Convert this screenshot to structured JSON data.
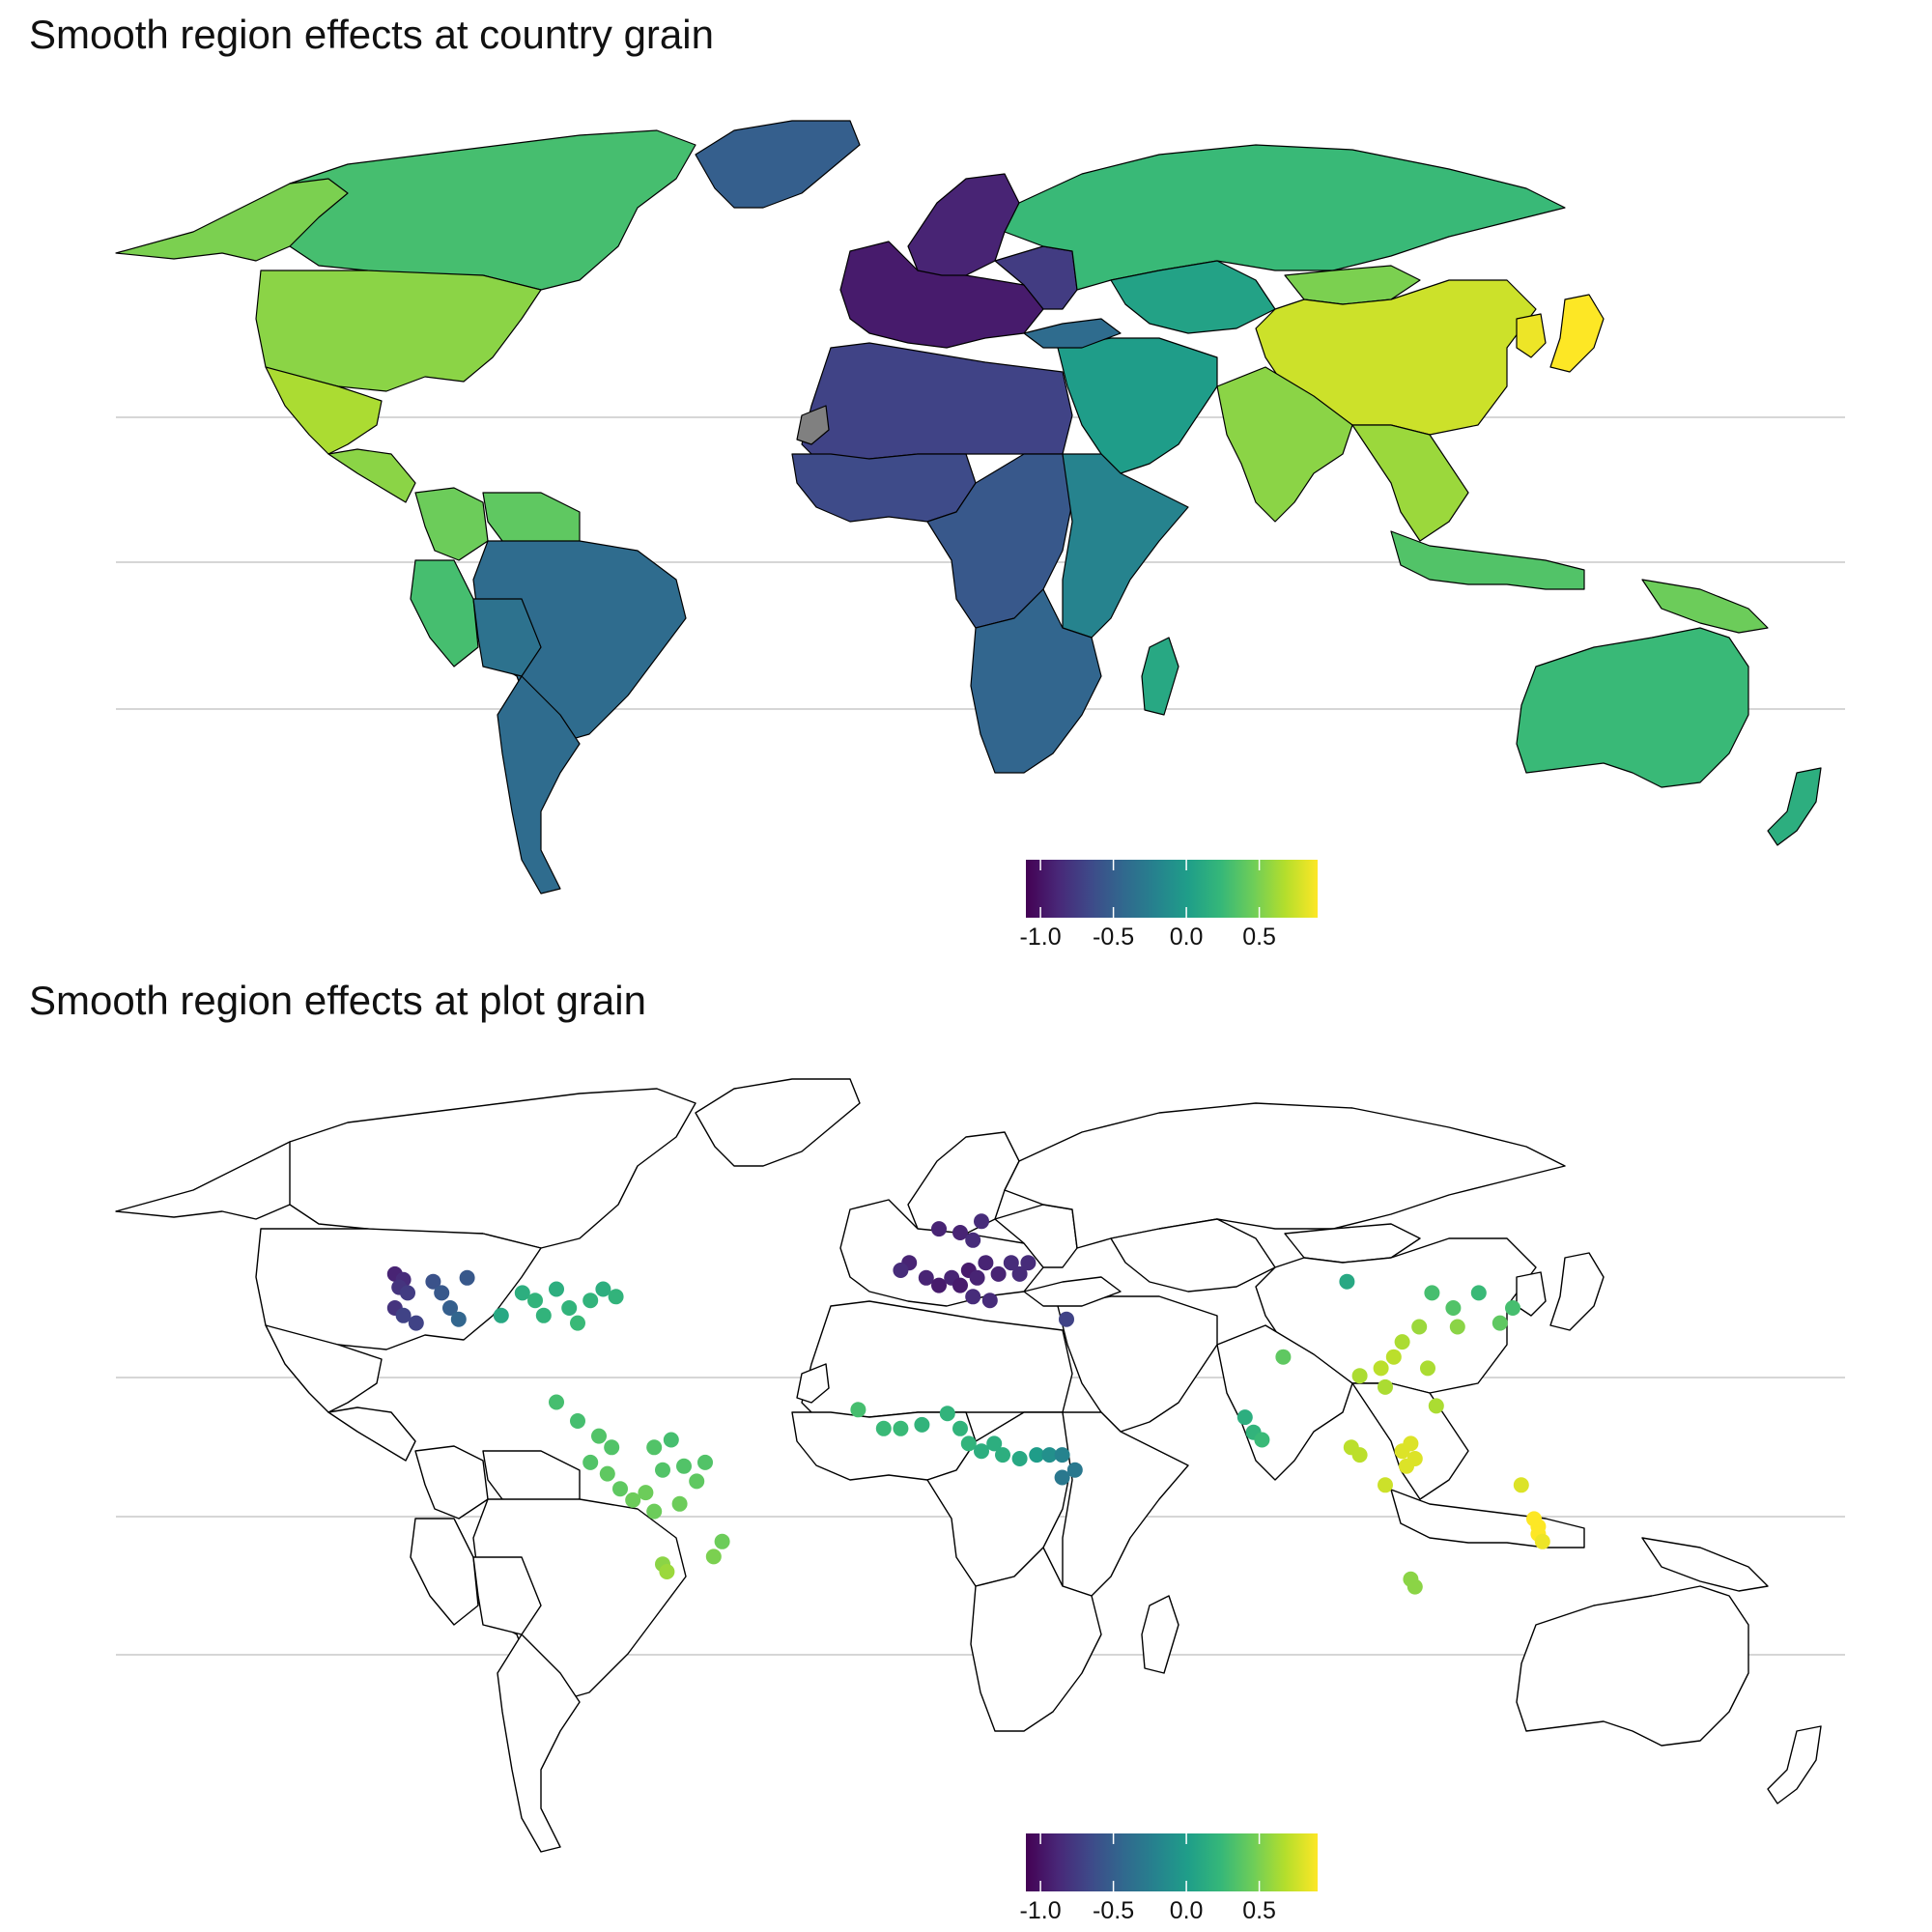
{
  "panels": [
    {
      "title": "Smooth region effects at country grain"
    },
    {
      "title": "Smooth region effects at plot grain"
    }
  ],
  "legend": {
    "ticks": [
      "-1.0",
      "-0.5",
      "0.0",
      "0.5"
    ],
    "tick_values": [
      -1.0,
      -0.5,
      0.0,
      0.5
    ],
    "range": [
      -1.1,
      0.9
    ],
    "palette": "viridis",
    "colors": [
      "#440154",
      "#482878",
      "#3E4A89",
      "#31688E",
      "#26828E",
      "#1F9E89",
      "#35B779",
      "#6DCD59",
      "#B4DE2C",
      "#FDE725"
    ]
  },
  "na_color": "#808080",
  "colors": {
    "graticule": "#BEBEBE",
    "outline": "#000000",
    "background": "#FFFFFF"
  },
  "chart_data": [
    {
      "type": "map-choropleth",
      "title": "Smooth region effects at country grain",
      "fill_scale": "viridis",
      "regions": [
        {
          "region": "Canada",
          "value": 0.3
        },
        {
          "region": "Alaska",
          "value": 0.5
        },
        {
          "region": "Greenland",
          "value": -0.5
        },
        {
          "region": "United States",
          "value": 0.55
        },
        {
          "region": "Mexico",
          "value": 0.65
        },
        {
          "region": "Central America",
          "value": 0.55
        },
        {
          "region": "Colombia",
          "value": 0.45
        },
        {
          "region": "Venezuela",
          "value": 0.4
        },
        {
          "region": "Peru",
          "value": 0.3
        },
        {
          "region": "Brazil",
          "value": -0.4
        },
        {
          "region": "Argentina",
          "value": -0.4
        },
        {
          "region": "Bolivia",
          "value": -0.35
        },
        {
          "region": "Europe",
          "value": -0.95
        },
        {
          "region": "Scandinavia",
          "value": -0.9
        },
        {
          "region": "Eastern Europe",
          "value": -0.75
        },
        {
          "region": "Russia",
          "value": 0.25
        },
        {
          "region": "Kazakhstan",
          "value": 0.05
        },
        {
          "region": "Mongolia",
          "value": 0.5
        },
        {
          "region": "China",
          "value": 0.75
        },
        {
          "region": "Japan",
          "value": 0.9
        },
        {
          "region": "Korea",
          "value": 0.85
        },
        {
          "region": "India",
          "value": 0.55
        },
        {
          "region": "Southeast Asia",
          "value": 0.6
        },
        {
          "region": "Middle East",
          "value": 0.0
        },
        {
          "region": "Turkey",
          "value": -0.4
        },
        {
          "region": "North Africa",
          "value": -0.7
        },
        {
          "region": "West Africa",
          "value": -0.65
        },
        {
          "region": "Western Sahara",
          "value": null
        },
        {
          "region": "Central Africa",
          "value": -0.55
        },
        {
          "region": "East Africa",
          "value": -0.2
        },
        {
          "region": "Southern Africa",
          "value": -0.45
        },
        {
          "region": "Madagascar",
          "value": 0.1
        },
        {
          "region": "Indonesia",
          "value": 0.35
        },
        {
          "region": "Papua New Guinea",
          "value": 0.45
        },
        {
          "region": "Australia",
          "value": 0.25
        },
        {
          "region": "New Zealand",
          "value": 0.15
        }
      ]
    },
    {
      "type": "map-points",
      "title": "Smooth region effects at plot grain",
      "color_scale": "viridis",
      "points": [
        {
          "lon": -123,
          "lat": 49,
          "value": -0.9
        },
        {
          "lon": -121,
          "lat": 47.5,
          "value": -0.85
        },
        {
          "lon": -122,
          "lat": 45.5,
          "value": -0.8
        },
        {
          "lon": -120,
          "lat": 44,
          "value": -0.75
        },
        {
          "lon": -123,
          "lat": 40,
          "value": -0.8
        },
        {
          "lon": -121,
          "lat": 38,
          "value": -0.7
        },
        {
          "lon": -118,
          "lat": 36,
          "value": -0.7
        },
        {
          "lon": -114,
          "lat": 47,
          "value": -0.6
        },
        {
          "lon": -112,
          "lat": 44,
          "value": -0.55
        },
        {
          "lon": -110,
          "lat": 40,
          "value": -0.5
        },
        {
          "lon": -106,
          "lat": 48,
          "value": -0.55
        },
        {
          "lon": -108,
          "lat": 37,
          "value": -0.45
        },
        {
          "lon": -98,
          "lat": 38,
          "value": 0.1
        },
        {
          "lon": -93,
          "lat": 44,
          "value": 0.15
        },
        {
          "lon": -90,
          "lat": 42,
          "value": 0.2
        },
        {
          "lon": -88,
          "lat": 38,
          "value": 0.2
        },
        {
          "lon": -85,
          "lat": 45,
          "value": 0.15
        },
        {
          "lon": -82,
          "lat": 40,
          "value": 0.2
        },
        {
          "lon": -80,
          "lat": 36,
          "value": 0.25
        },
        {
          "lon": -77,
          "lat": 42,
          "value": 0.2
        },
        {
          "lon": -74,
          "lat": 45,
          "value": 0.15
        },
        {
          "lon": -71,
          "lat": 43,
          "value": 0.2
        },
        {
          "lon": -85,
          "lat": 15,
          "value": 0.3
        },
        {
          "lon": -80,
          "lat": 10,
          "value": 0.3
        },
        {
          "lon": -75,
          "lat": 6,
          "value": 0.35
        },
        {
          "lon": -72,
          "lat": 3,
          "value": 0.35
        },
        {
          "lon": -77,
          "lat": -1,
          "value": 0.35
        },
        {
          "lon": -73,
          "lat": -4,
          "value": 0.4
        },
        {
          "lon": -70,
          "lat": -8,
          "value": 0.4
        },
        {
          "lon": -67,
          "lat": -11,
          "value": 0.45
        },
        {
          "lon": -64,
          "lat": -9,
          "value": 0.45
        },
        {
          "lon": -60,
          "lat": -3,
          "value": 0.35
        },
        {
          "lon": -62,
          "lat": 3,
          "value": 0.35
        },
        {
          "lon": -58,
          "lat": 5,
          "value": 0.3
        },
        {
          "lon": -55,
          "lat": -2,
          "value": 0.35
        },
        {
          "lon": -52,
          "lat": -6,
          "value": 0.4
        },
        {
          "lon": -50,
          "lat": -1,
          "value": 0.35
        },
        {
          "lon": -56,
          "lat": -12,
          "value": 0.45
        },
        {
          "lon": -62,
          "lat": -14,
          "value": 0.45
        },
        {
          "lon": -46,
          "lat": -22,
          "value": 0.45
        },
        {
          "lon": -48,
          "lat": -26,
          "value": 0.5
        },
        {
          "lon": -60,
          "lat": -28,
          "value": 0.55
        },
        {
          "lon": -59,
          "lat": -30,
          "value": 0.6
        },
        {
          "lon": 5,
          "lat": 61,
          "value": -0.9
        },
        {
          "lon": 10,
          "lat": 60,
          "value": -0.9
        },
        {
          "lon": 15,
          "lat": 63,
          "value": -0.85
        },
        {
          "lon": 13,
          "lat": 58,
          "value": -0.85
        },
        {
          "lon": -2,
          "lat": 52,
          "value": -0.9
        },
        {
          "lon": -4,
          "lat": 50,
          "value": -0.85
        },
        {
          "lon": 2,
          "lat": 48,
          "value": -0.9
        },
        {
          "lon": 5,
          "lat": 46,
          "value": -0.95
        },
        {
          "lon": 8,
          "lat": 48,
          "value": -0.9
        },
        {
          "lon": 10,
          "lat": 46,
          "value": -0.95
        },
        {
          "lon": 12,
          "lat": 50,
          "value": -0.95
        },
        {
          "lon": 14,
          "lat": 48,
          "value": -0.9
        },
        {
          "lon": 16,
          "lat": 52,
          "value": -0.9
        },
        {
          "lon": 19,
          "lat": 49,
          "value": -0.9
        },
        {
          "lon": 22,
          "lat": 52,
          "value": -0.85
        },
        {
          "lon": 24,
          "lat": 49,
          "value": -0.85
        },
        {
          "lon": 26,
          "lat": 52,
          "value": -0.85
        },
        {
          "lon": 13,
          "lat": 43,
          "value": -0.85
        },
        {
          "lon": 17,
          "lat": 42,
          "value": -0.85
        },
        {
          "lon": 35,
          "lat": 37,
          "value": -0.7
        },
        {
          "lon": -14,
          "lat": 13,
          "value": 0.3
        },
        {
          "lon": -8,
          "lat": 8,
          "value": 0.25
        },
        {
          "lon": -4,
          "lat": 8,
          "value": 0.25
        },
        {
          "lon": 1,
          "lat": 9,
          "value": 0.2
        },
        {
          "lon": 7,
          "lat": 12,
          "value": 0.2
        },
        {
          "lon": 10,
          "lat": 8,
          "value": 0.2
        },
        {
          "lon": 12,
          "lat": 4,
          "value": 0.2
        },
        {
          "lon": 15,
          "lat": 2,
          "value": 0.15
        },
        {
          "lon": 18,
          "lat": 4,
          "value": 0.15
        },
        {
          "lon": 20,
          "lat": 1,
          "value": 0.15
        },
        {
          "lon": 24,
          "lat": 0,
          "value": 0.1
        },
        {
          "lon": 28,
          "lat": 1,
          "value": 0.0
        },
        {
          "lon": 31,
          "lat": 1,
          "value": -0.1
        },
        {
          "lon": 34,
          "lat": 1,
          "value": -0.2
        },
        {
          "lon": 37,
          "lat": -3,
          "value": -0.3
        },
        {
          "lon": 34,
          "lat": -5,
          "value": -0.3
        },
        {
          "lon": 77,
          "lat": 11,
          "value": 0.15
        },
        {
          "lon": 79,
          "lat": 7,
          "value": 0.2
        },
        {
          "lon": 81,
          "lat": 5,
          "value": 0.25
        },
        {
          "lon": 86,
          "lat": 27,
          "value": 0.4
        },
        {
          "lon": 101,
          "lat": 47,
          "value": 0.1
        },
        {
          "lon": 121,
          "lat": 44,
          "value": 0.3
        },
        {
          "lon": 126,
          "lat": 40,
          "value": 0.35
        },
        {
          "lon": 132,
          "lat": 44,
          "value": 0.25
        },
        {
          "lon": 118,
          "lat": 35,
          "value": 0.6
        },
        {
          "lon": 114,
          "lat": 31,
          "value": 0.65
        },
        {
          "lon": 112,
          "lat": 27,
          "value": 0.7
        },
        {
          "lon": 109,
          "lat": 24,
          "value": 0.7
        },
        {
          "lon": 104,
          "lat": 22,
          "value": 0.65
        },
        {
          "lon": 110,
          "lat": 19,
          "value": 0.65
        },
        {
          "lon": 120,
          "lat": 24,
          "value": 0.65
        },
        {
          "lon": 122,
          "lat": 14,
          "value": 0.65
        },
        {
          "lon": 127,
          "lat": 35,
          "value": 0.55
        },
        {
          "lon": 137,
          "lat": 36,
          "value": 0.4
        },
        {
          "lon": 140,
          "lat": 40,
          "value": 0.3
        },
        {
          "lon": 102,
          "lat": 3,
          "value": 0.7
        },
        {
          "lon": 104,
          "lat": 1,
          "value": 0.7
        },
        {
          "lon": 114,
          "lat": 2,
          "value": 0.8
        },
        {
          "lon": 116,
          "lat": 4,
          "value": 0.8
        },
        {
          "lon": 117,
          "lat": 0,
          "value": 0.8
        },
        {
          "lon": 115,
          "lat": -2,
          "value": 0.8
        },
        {
          "lon": 110,
          "lat": -7,
          "value": 0.75
        },
        {
          "lon": 142,
          "lat": -7,
          "value": 0.8
        },
        {
          "lon": 145,
          "lat": -16,
          "value": 0.9
        },
        {
          "lon": 146,
          "lat": -18,
          "value": 0.9
        },
        {
          "lon": 146,
          "lat": -20,
          "value": 0.9
        },
        {
          "lon": 147,
          "lat": -22,
          "value": 0.85
        },
        {
          "lon": 116,
          "lat": -32,
          "value": 0.55
        },
        {
          "lon": 117,
          "lat": -34,
          "value": 0.55
        }
      ]
    }
  ]
}
